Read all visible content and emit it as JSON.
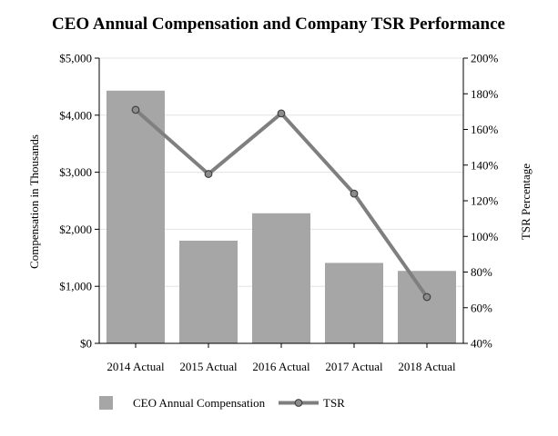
{
  "chart_data": {
    "type": "bar",
    "title": "CEO Annual Compensation and Company TSR Performance",
    "categories": [
      "2014 Actual",
      "2015 Actual",
      "2016 Actual",
      "2017 Actual",
      "2018 Actual"
    ],
    "series": [
      {
        "name": "CEO Annual Compensation",
        "type": "bar",
        "axis": "left",
        "values": [
          4430,
          1800,
          2280,
          1410,
          1270
        ]
      },
      {
        "name": "TSR",
        "type": "line",
        "axis": "right",
        "values": [
          171,
          135,
          169,
          124,
          66
        ]
      }
    ],
    "ylabel": "Compensation in Thousands",
    "ylabel_right": "TSR Percentage",
    "ylim": [
      0,
      5000
    ],
    "ylim_right": [
      40,
      200
    ],
    "y_ticks": [
      0,
      1000,
      2000,
      3000,
      4000,
      5000
    ],
    "y_tick_labels": [
      "$0",
      "$1,000",
      "$2,000",
      "$3,000",
      "$4,000",
      "$5,000"
    ],
    "y_right_ticks": [
      40,
      60,
      80,
      100,
      120,
      140,
      160,
      180,
      200
    ],
    "y_right_tick_labels": [
      "40%",
      "60%",
      "80%",
      "100%",
      "120%",
      "140%",
      "160%",
      "180%",
      "200%"
    ],
    "grid": true,
    "legend_position": "bottom",
    "colors": {
      "bar": "#a6a6a6",
      "line": "#7f7f7f",
      "marker_fill": "#8c8c8c",
      "marker_stroke": "#404040",
      "grid": "#e3e3e3",
      "axis": "#000000"
    }
  }
}
